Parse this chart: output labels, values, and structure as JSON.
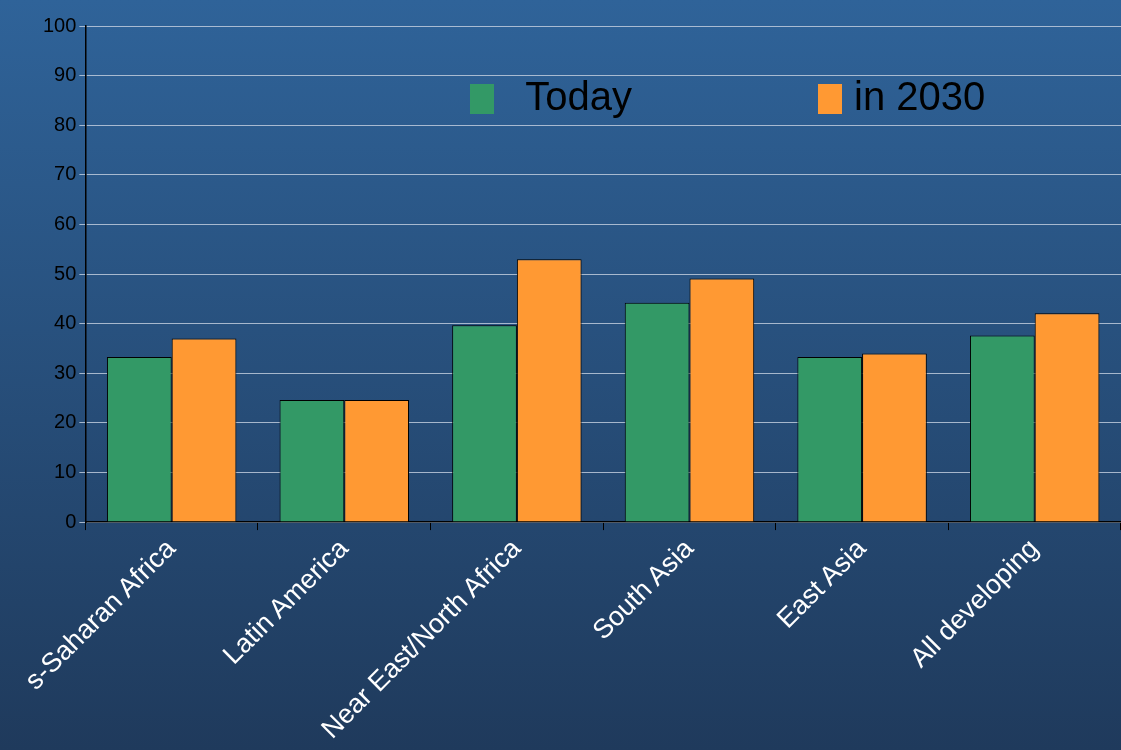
{
  "chart_data": {
    "type": "bar",
    "categories": [
      "s-Saharan Africa",
      "Latin America",
      "Near East/North Africa",
      "South Asia",
      "East Asia",
      "All developing"
    ],
    "series": [
      {
        "name": "Today",
        "color": "#339966",
        "values": [
          33.3,
          24.6,
          39.7,
          44.2,
          33.3,
          37.6
        ]
      },
      {
        "name": "in 2030",
        "color": "#ff9933",
        "values": [
          37.0,
          24.6,
          53.0,
          49.1,
          34.0,
          42.1
        ]
      }
    ],
    "ylim": [
      0,
      100
    ],
    "yticks": [
      0,
      10,
      20,
      30,
      40,
      50,
      60,
      70,
      80,
      90,
      100
    ],
    "grid": "y",
    "legend": "top right"
  }
}
